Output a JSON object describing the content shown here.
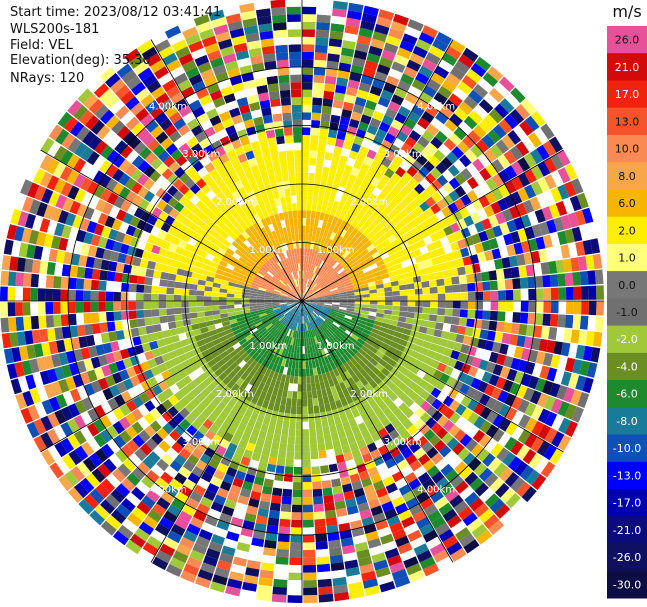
{
  "header": {
    "start_time": "Start time: 2023/08/12 03:41:41",
    "instrument": "WLS200s-181",
    "field": "Field: VEL",
    "elevation": "Elevation(deg): 35.30",
    "nrays": "NRays: 120"
  },
  "chart_data": {
    "type": "heatmap",
    "projection": "polar PPI scan",
    "field": "VEL",
    "units": "m/s",
    "n_rays": 120,
    "range_rings_km": [
      1,
      2,
      3,
      4
    ],
    "ring_labels": [
      "1.00km",
      "2.00km",
      "3.00km",
      "4.00km"
    ],
    "colorbar": {
      "title": "m/s",
      "ticks": [
        "26.0",
        "21.0",
        "17.0",
        "13.0",
        "10.0",
        "8.0",
        "6.0",
        "2.0",
        "1.0",
        "0.0",
        "-1.0",
        "-2.0",
        "-4.0",
        "-6.0",
        "-8.0",
        "-10.0",
        "-13.0",
        "-17.0",
        "-21.0",
        "-26.0",
        "-30.0"
      ],
      "colors": [
        "#e8509a",
        "#d40a0a",
        "#f2230c",
        "#f7542c",
        "#f98a54",
        "#f9a54a",
        "#f7b400",
        "#ffee00",
        "#ffff7a",
        "#777777",
        "#707070",
        "#a0c838",
        "#6b8e23",
        "#1e8a2e",
        "#1a7a9a",
        "#0e4fb8",
        "#0000ff",
        "#0000b0",
        "#0b0b7a",
        "#101060",
        "#0d0d45"
      ]
    },
    "dominant_pattern": {
      "inbound_sector_deg": [
        0,
        180
      ],
      "inbound_colors": [
        "#ffee00",
        "#f7b400",
        "#f98a54"
      ],
      "outbound_colors": [
        "#a0c838",
        "#6b8e23",
        "#1e8a2e"
      ],
      "noise_beyond_km": 2.6
    }
  }
}
